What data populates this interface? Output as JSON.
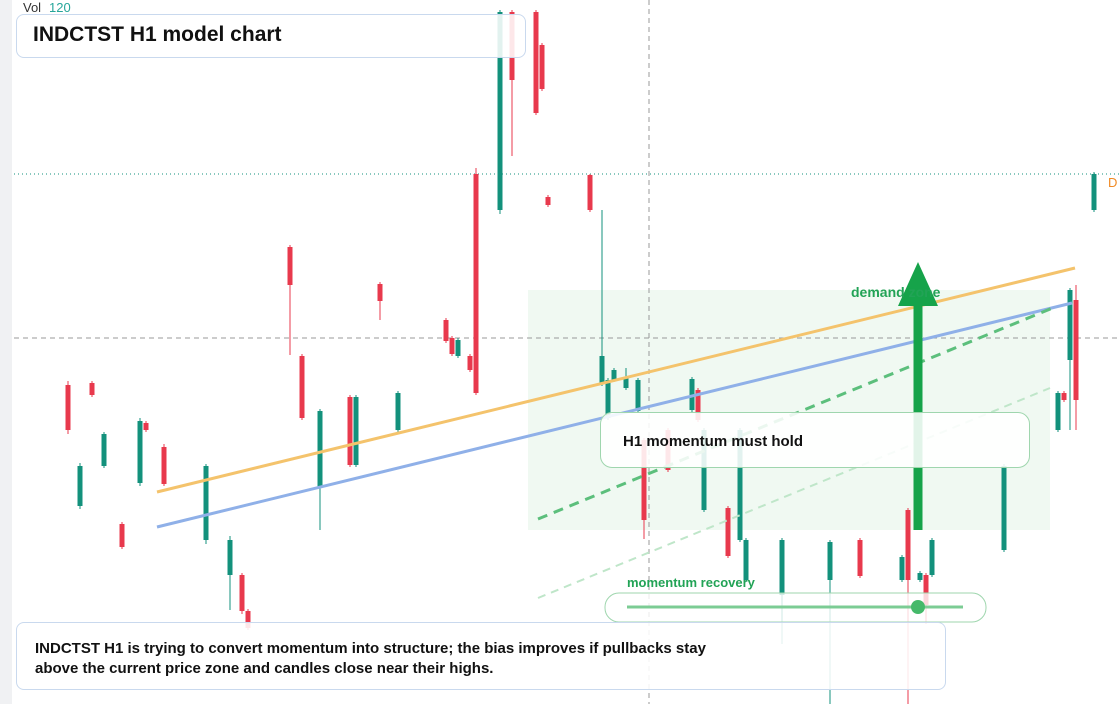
{
  "chart_data": {
    "type": "candlestick",
    "title": "INDCTST H1 model chart",
    "volume_label": "Vol",
    "volume_value": 120,
    "note": "INDCTST H1 is trying to convert momentum into structure; the bias improves if pullbacks stay above the current price zone and candles close near their highs.",
    "annotations": [
      "H1 momentum must hold",
      "demand zone",
      "momentum recovery",
      "D"
    ],
    "up_color": "#13917c",
    "down_color": "#e8394d",
    "xlim": [
      -9,
      177
    ],
    "ylim": [
      0,
      704
    ],
    "x": [
      2,
      4,
      6,
      8,
      11,
      14,
      15,
      18,
      25,
      29,
      31,
      32,
      39,
      41,
      44,
      49,
      50,
      54,
      57,
      65,
      66,
      67,
      69,
      70,
      74,
      76,
      80,
      81,
      82,
      89,
      91,
      92,
      93,
      95,
      97,
      98,
      102,
      106,
      107,
      108,
      112,
      114,
      115,
      121,
      129,
      134,
      141,
      142,
      144,
      145,
      146,
      158,
      167,
      168,
      169,
      170,
      173
    ],
    "open": [
      319,
      198,
      321,
      238,
      180,
      221,
      281,
      257,
      164,
      129,
      129,
      93,
      457,
      348,
      216,
      307,
      239,
      420,
      274,
      384,
      366,
      348,
      348,
      530,
      494,
      692,
      692,
      659,
      507,
      529,
      320,
      286,
      324,
      316,
      293,
      264,
      274,
      294,
      314,
      194,
      196,
      164,
      124,
      109,
      124,
      164,
      124,
      194,
      124,
      129,
      129,
      154,
      274,
      311,
      344,
      404,
      494
    ],
    "high": [
      323,
      241,
      323,
      272,
      182,
      286,
      283,
      260,
      240,
      168,
      131,
      95,
      459,
      350,
      295,
      309,
      309,
      422,
      313,
      386,
      368,
      366,
      350,
      536,
      694,
      694,
      694,
      661,
      509,
      530,
      494,
      326,
      336,
      336,
      326,
      266,
      276,
      327,
      316,
      276,
      198,
      276,
      166,
      166,
      164,
      166,
      149,
      196,
      133,
      131,
      166,
      240,
      313,
      313,
      416,
      419,
      532
    ],
    "low": [
      270,
      195,
      307,
      236,
      155,
      218,
      272,
      218,
      160,
      94,
      90,
      74,
      349,
      284,
      174,
      237,
      237,
      384,
      272,
      361,
      348,
      346,
      332,
      309,
      490,
      548,
      589,
      613,
      497,
      492,
      318,
      284,
      322,
      314,
      291,
      165,
      232,
      292,
      282,
      192,
      146,
      162,
      122,
      60,
      0,
      126,
      122,
      0,
      122,
      80,
      127,
      152,
      272,
      302,
      274,
      274,
      492
    ],
    "close": [
      274,
      238,
      309,
      270,
      157,
      283,
      274,
      220,
      238,
      164,
      93,
      76,
      419,
      286,
      293,
      239,
      307,
      403,
      311,
      363,
      350,
      364,
      334,
      311,
      692,
      624,
      591,
      615,
      499,
      494,
      348,
      324,
      334,
      326,
      324,
      184,
      234,
      325,
      284,
      274,
      148,
      274,
      164,
      164,
      162,
      128,
      147,
      124,
      131,
      99,
      164,
      238,
      311,
      304,
      414,
      304,
      530
    ]
  }
}
